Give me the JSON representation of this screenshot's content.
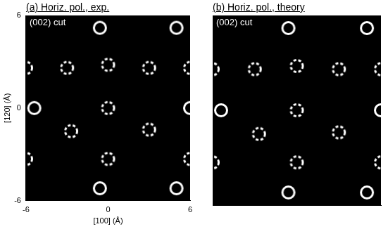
{
  "chart_data": [
    {
      "type": "scatter",
      "title": "(a) Horiz. pol., exp.",
      "annotation": "(002) cut",
      "x_label": "[100] (Å)",
      "y_label": "[120] (Å)",
      "xlim": [
        -6,
        6
      ],
      "ylim": [
        -6,
        6
      ],
      "xticks": [
        -6,
        0,
        6
      ],
      "yticks": [
        -6,
        0,
        6
      ],
      "grid": false,
      "series": [
        {
          "color": "#ffffff",
          "marker": "circle",
          "line_style": "solid",
          "x": [
            -0.6,
            5.0,
            -5.4,
            6.0,
            -0.6,
            5.0
          ],
          "y": [
            5.2,
            5.2,
            0.0,
            0.0,
            -5.2,
            -5.2
          ]
        },
        {
          "color": "#ffffff",
          "marker": "circle",
          "line_style": "dashed",
          "x": [
            -6.0,
            -3.0,
            0.0,
            3.0,
            6.0,
            0.0,
            -2.7,
            3.0,
            -6.0,
            0.0,
            6.0
          ],
          "y": [
            2.6,
            2.6,
            2.8,
            2.6,
            2.6,
            0.0,
            -1.5,
            -1.4,
            -3.3,
            -3.3,
            -3.3
          ]
        }
      ]
    },
    {
      "type": "scatter",
      "title": "(b) Horiz. pol., theory",
      "annotation": "(002) cut",
      "xlim": [
        -6,
        6
      ],
      "ylim": [
        -6,
        6
      ],
      "grid": false,
      "tick_labels": false,
      "series": [
        {
          "color": "#ffffff",
          "marker": "circle",
          "line_style": "solid",
          "x": [
            -0.6,
            5.0,
            -5.4,
            6.0,
            -0.6,
            5.0
          ],
          "y": [
            5.2,
            5.2,
            0.0,
            0.0,
            -5.2,
            -5.2
          ]
        },
        {
          "color": "#ffffff",
          "marker": "circle",
          "line_style": "dashed",
          "x": [
            -6.0,
            -3.0,
            0.0,
            3.0,
            6.0,
            0.0,
            -2.7,
            3.0,
            -6.0,
            0.0,
            6.0
          ],
          "y": [
            2.6,
            2.6,
            2.8,
            2.6,
            2.6,
            0.0,
            -1.5,
            -1.4,
            -3.3,
            -3.3,
            -3.3
          ]
        }
      ]
    }
  ]
}
